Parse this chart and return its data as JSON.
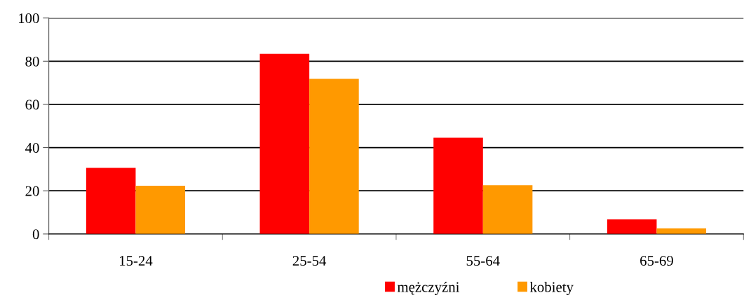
{
  "chart_data": {
    "type": "bar",
    "categories": [
      "15-24",
      "25-54",
      "55-64",
      "65-69"
    ],
    "series": [
      {
        "name": "mężczyźni",
        "color": "#ff0000",
        "values": [
          30.6,
          83.4,
          44.6,
          6.8
        ]
      },
      {
        "name": "kobiety",
        "color": "#ff9900",
        "values": [
          22.3,
          71.8,
          22.6,
          2.6
        ]
      }
    ],
    "ylim": [
      0,
      100
    ],
    "yticks": [
      0,
      20,
      40,
      60,
      80,
      100
    ],
    "grid": "y",
    "legend": "bottom"
  }
}
